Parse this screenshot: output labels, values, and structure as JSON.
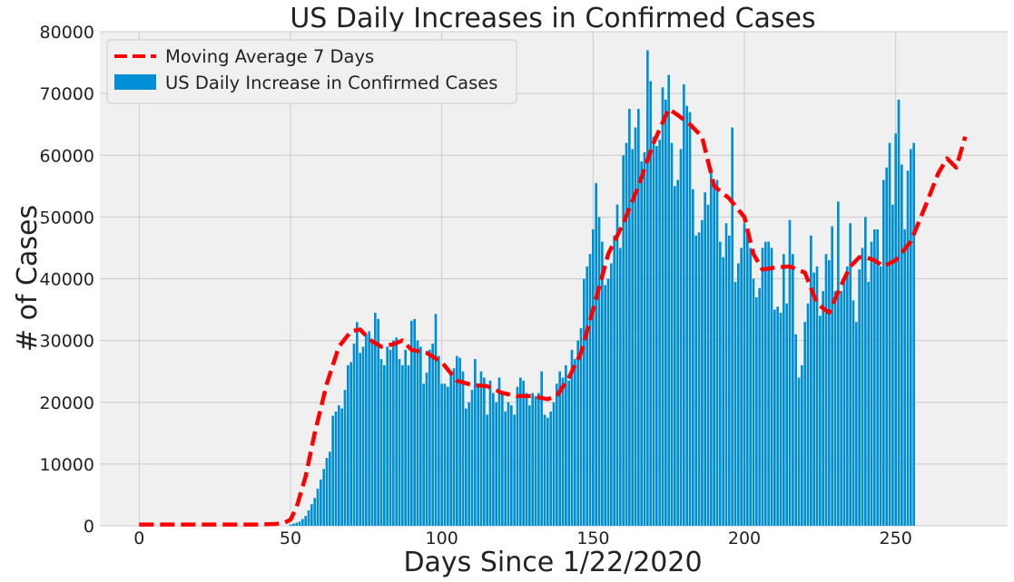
{
  "chart_data": {
    "type": "bar",
    "title": "US Daily Increases in Confirmed Cases",
    "xlabel": "Days Since 1/22/2020",
    "ylabel": "# of Cases",
    "xlim": [
      -13,
      287
    ],
    "ylim": [
      0,
      80000
    ],
    "xticks": [
      0,
      50,
      100,
      150,
      200,
      250
    ],
    "yticks": [
      0,
      10000,
      20000,
      30000,
      40000,
      50000,
      60000,
      70000,
      80000
    ],
    "grid": true,
    "legend_position": "top-left",
    "x_start": 0,
    "series": [
      {
        "name": "Moving Average 7 Days",
        "kind": "line",
        "style": "dashed",
        "color": "#ff0000",
        "x": [
          0,
          10,
          20,
          30,
          40,
          45,
          48,
          50,
          52,
          55,
          58,
          62,
          66,
          70,
          73,
          76,
          80,
          84,
          87,
          90,
          95,
          100,
          105,
          110,
          115,
          120,
          125,
          130,
          135,
          138,
          142,
          146,
          150,
          155,
          160,
          165,
          170,
          175,
          178,
          182,
          186,
          190,
          195,
          200,
          203,
          206,
          210,
          215,
          220,
          224,
          228,
          232,
          235,
          238,
          240,
          243,
          246,
          250,
          255,
          260,
          264,
          267,
          270,
          273
        ],
        "values": [
          200,
          200,
          200,
          200,
          200,
          300,
          500,
          1000,
          3000,
          8000,
          15000,
          23000,
          29000,
          31500,
          31800,
          30200,
          29000,
          29400,
          30000,
          28500,
          28000,
          26500,
          23500,
          22800,
          22600,
          21500,
          21000,
          21000,
          20500,
          21000,
          24000,
          28000,
          35000,
          44000,
          49000,
          55000,
          62000,
          67500,
          66500,
          65000,
          63000,
          55000,
          53000,
          50000,
          44000,
          41500,
          41800,
          42000,
          41000,
          36000,
          34500,
          39000,
          42000,
          43500,
          43500,
          43000,
          42000,
          43000,
          46000,
          52000,
          57000,
          59500,
          58000,
          63000
        ]
      },
      {
        "name": "US Daily Increase in Confirmed Cases",
        "kind": "bar",
        "color": "#008fd5",
        "values": [
          0,
          0,
          0,
          0,
          0,
          0,
          0,
          0,
          0,
          0,
          0,
          0,
          0,
          0,
          0,
          0,
          0,
          0,
          0,
          0,
          0,
          0,
          0,
          0,
          0,
          0,
          0,
          0,
          0,
          0,
          0,
          0,
          0,
          0,
          0,
          0,
          0,
          0,
          0,
          0,
          0,
          0,
          0,
          0,
          0,
          0,
          0,
          0,
          0,
          0,
          200,
          350,
          500,
          700,
          1100,
          1600,
          2500,
          3500,
          4500,
          6000,
          7500,
          9200,
          11000,
          12000,
          17800,
          18500,
          19500,
          19000,
          22000,
          26000,
          26500,
          29500,
          33000,
          28000,
          29000,
          31000,
          31500,
          30000,
          34500,
          33500,
          27000,
          26000,
          29000,
          28500,
          30000,
          30500,
          27000,
          26000,
          28500,
          26000,
          33200,
          33500,
          30000,
          29000,
          23000,
          24800,
          28500,
          29500,
          34300,
          27500,
          23000,
          23000,
          22500,
          24500,
          25500,
          27500,
          27200,
          25000,
          19000,
          20000,
          22000,
          27000,
          23000,
          25000,
          24000,
          18000,
          23500,
          21500,
          20000,
          24000,
          21500,
          18500,
          20000,
          19500,
          18000,
          22500,
          24000,
          23500,
          21500,
          19500,
          21500,
          21000,
          21500,
          25000,
          18000,
          17500,
          18500,
          20000,
          23000,
          25000,
          24000,
          26000,
          23500,
          28500,
          27000,
          30000,
          32000,
          40000,
          42000,
          44000,
          48000,
          55500,
          50000,
          46000,
          39000,
          40000,
          42500,
          47000,
          52000,
          45000,
          60000,
          62000,
          67500,
          61000,
          64500,
          67500,
          59000,
          60500,
          77000,
          72000,
          63000,
          61500,
          62500,
          71000,
          69000,
          73000,
          62000,
          55000,
          56000,
          61000,
          71500,
          68000,
          67000,
          54500,
          47000,
          47500,
          49500,
          54000,
          52000,
          58000,
          55000,
          56000,
          46000,
          43500,
          49000,
          47000,
          64500,
          39500,
          42500,
          45000,
          49000,
          47500,
          45000,
          40000,
          37000,
          38500,
          45000,
          46000,
          46000,
          45000,
          35000,
          35500,
          34500,
          44000,
          36000,
          49500,
          44000,
          31000,
          24000,
          26000,
          33000,
          36000,
          47000,
          41000,
          42000,
          34000,
          38000,
          44000,
          43000,
          48500,
          38000,
          52500,
          38000,
          40000,
          42000,
          49000,
          36500,
          33000,
          41500,
          45000,
          50000,
          39500,
          46000,
          48000,
          48000,
          42000,
          56000,
          58000,
          62000,
          52000,
          63500,
          69000,
          58500,
          48000,
          57500,
          61000,
          62000
        ]
      }
    ]
  }
}
